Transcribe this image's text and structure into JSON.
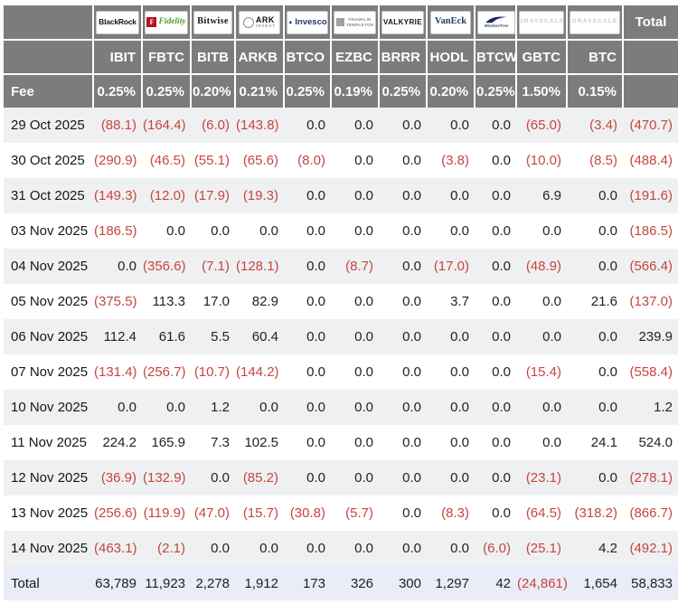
{
  "header": {
    "fee_label": "Fee",
    "total_column_label": "Total",
    "providers": [
      {
        "ticker": "IBIT",
        "fee": "0.25%",
        "company": "BlackRock",
        "logo": "blackrock-logo"
      },
      {
        "ticker": "FBTC",
        "fee": "0.25%",
        "company": "Fidelity",
        "logo": "fidelity-logo"
      },
      {
        "ticker": "BITB",
        "fee": "0.20%",
        "company": "Bitwise",
        "logo": "bitwise-logo"
      },
      {
        "ticker": "ARKB",
        "fee": "0.21%",
        "company": "ARK Invest",
        "logo": "ark-invest-logo"
      },
      {
        "ticker": "BTCO",
        "fee": "0.25%",
        "company": "Invesco",
        "logo": "invesco-logo"
      },
      {
        "ticker": "EZBC",
        "fee": "0.19%",
        "company": "Franklin Templeton",
        "logo": "franklin-templeton-logo"
      },
      {
        "ticker": "BRRR",
        "fee": "0.25%",
        "company": "Valkyrie",
        "logo": "valkyrie-logo"
      },
      {
        "ticker": "HODL",
        "fee": "0.20%",
        "company": "VanEck",
        "logo": "vaneck-logo"
      },
      {
        "ticker": "BTCW",
        "fee": "0.25%",
        "company": "WisdomTree",
        "logo": "wisdomtree-logo"
      },
      {
        "ticker": "GBTC",
        "fee": "1.50%",
        "company": "Grayscale",
        "logo": "grayscale-logo"
      },
      {
        "ticker": "BTC",
        "fee": "0.15%",
        "company": "Grayscale",
        "logo": "grayscale-logo"
      }
    ]
  },
  "chart_data": {
    "type": "table",
    "columns": [
      "IBIT",
      "FBTC",
      "BITB",
      "ARKB",
      "BTCO",
      "EZBC",
      "BRRR",
      "HODL",
      "BTCW",
      "GBTC",
      "BTC",
      "Total"
    ],
    "fees": [
      "0.25%",
      "0.25%",
      "0.20%",
      "0.21%",
      "0.25%",
      "0.19%",
      "0.25%",
      "0.20%",
      "0.25%",
      "1.50%",
      "0.15%"
    ],
    "rows": [
      {
        "date": "29 Oct 2025",
        "values": [
          "(88.1)",
          "(164.4)",
          "(6.0)",
          "(143.8)",
          "0.0",
          "0.0",
          "0.0",
          "0.0",
          "0.0",
          "(65.0)",
          "(3.4)"
        ],
        "total": "(470.7)"
      },
      {
        "date": "30 Oct 2025",
        "values": [
          "(290.9)",
          "(46.5)",
          "(55.1)",
          "(65.6)",
          "(8.0)",
          "0.0",
          "0.0",
          "(3.8)",
          "0.0",
          "(10.0)",
          "(8.5)"
        ],
        "total": "(488.4)"
      },
      {
        "date": "31 Oct 2025",
        "values": [
          "(149.3)",
          "(12.0)",
          "(17.9)",
          "(19.3)",
          "0.0",
          "0.0",
          "0.0",
          "0.0",
          "0.0",
          "6.9",
          "0.0"
        ],
        "total": "(191.6)"
      },
      {
        "date": "03 Nov 2025",
        "values": [
          "(186.5)",
          "0.0",
          "0.0",
          "0.0",
          "0.0",
          "0.0",
          "0.0",
          "0.0",
          "0.0",
          "0.0",
          "0.0"
        ],
        "total": "(186.5)"
      },
      {
        "date": "04 Nov 2025",
        "values": [
          "0.0",
          "(356.6)",
          "(7.1)",
          "(128.1)",
          "0.0",
          "(8.7)",
          "0.0",
          "(17.0)",
          "0.0",
          "(48.9)",
          "0.0"
        ],
        "total": "(566.4)"
      },
      {
        "date": "05 Nov 2025",
        "values": [
          "(375.5)",
          "113.3",
          "17.0",
          "82.9",
          "0.0",
          "0.0",
          "0.0",
          "3.7",
          "0.0",
          "0.0",
          "21.6"
        ],
        "total": "(137.0)"
      },
      {
        "date": "06 Nov 2025",
        "values": [
          "112.4",
          "61.6",
          "5.5",
          "60.4",
          "0.0",
          "0.0",
          "0.0",
          "0.0",
          "0.0",
          "0.0",
          "0.0"
        ],
        "total": "239.9"
      },
      {
        "date": "07 Nov 2025",
        "values": [
          "(131.4)",
          "(256.7)",
          "(10.7)",
          "(144.2)",
          "0.0",
          "0.0",
          "0.0",
          "0.0",
          "0.0",
          "(15.4)",
          "0.0"
        ],
        "total": "(558.4)"
      },
      {
        "date": "10 Nov 2025",
        "values": [
          "0.0",
          "0.0",
          "1.2",
          "0.0",
          "0.0",
          "0.0",
          "0.0",
          "0.0",
          "0.0",
          "0.0",
          "0.0"
        ],
        "total": "1.2"
      },
      {
        "date": "11 Nov 2025",
        "values": [
          "224.2",
          "165.9",
          "7.3",
          "102.5",
          "0.0",
          "0.0",
          "0.0",
          "0.0",
          "0.0",
          "0.0",
          "24.1"
        ],
        "total": "524.0"
      },
      {
        "date": "12 Nov 2025",
        "values": [
          "(36.9)",
          "(132.9)",
          "0.0",
          "(85.2)",
          "0.0",
          "0.0",
          "0.0",
          "0.0",
          "0.0",
          "(23.1)",
          "0.0"
        ],
        "total": "(278.1)"
      },
      {
        "date": "13 Nov 2025",
        "values": [
          "(256.6)",
          "(119.9)",
          "(47.0)",
          "(15.7)",
          "(30.8)",
          "(5.7)",
          "0.0",
          "(8.3)",
          "0.0",
          "(64.5)",
          "(318.2)"
        ],
        "total": "(866.7)"
      },
      {
        "date": "14 Nov 2025",
        "values": [
          "(463.1)",
          "(2.1)",
          "0.0",
          "0.0",
          "0.0",
          "0.0",
          "0.0",
          "0.0",
          "(6.0)",
          "(25.1)",
          "4.2"
        ],
        "total": "(492.1)"
      }
    ],
    "totals": {
      "label": "Total",
      "values": [
        "63,789",
        "11,923",
        "2,278",
        "1,912",
        "173",
        "326",
        "300",
        "1,297",
        "42",
        "(24,861)",
        "1,654"
      ],
      "total": "58,833"
    }
  },
  "colors": {
    "header_bg": "#7c7c7c",
    "negative": "#c64540",
    "stripe": "#eff0f2",
    "grand_total_row_bg": "#eaecf7"
  }
}
